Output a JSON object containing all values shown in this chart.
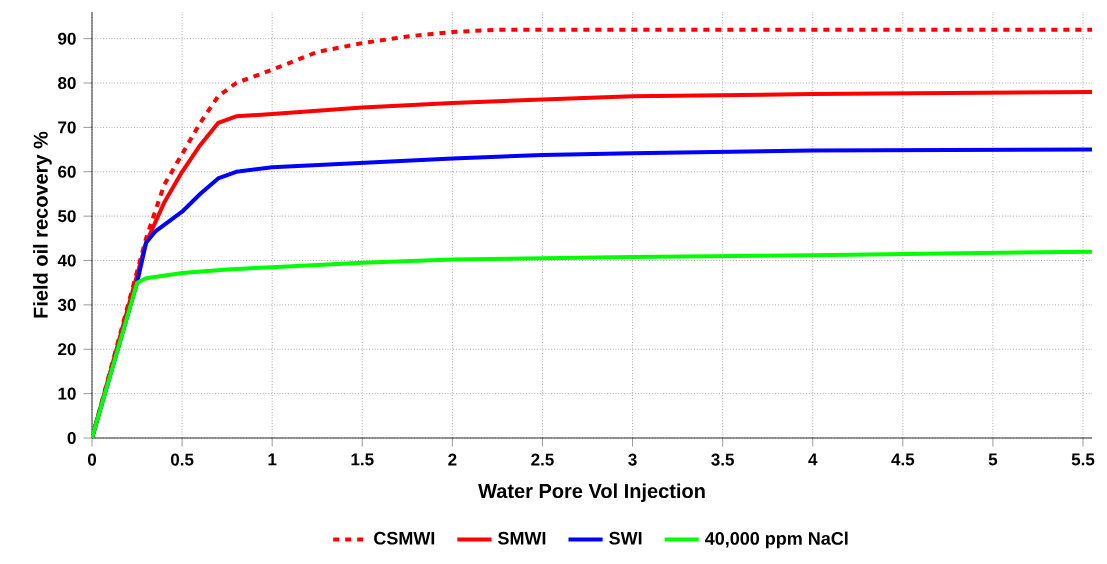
{
  "chart_data": {
    "type": "line",
    "xlabel": "Water Pore Vol Injection",
    "ylabel": "Field oil recovery %",
    "xlim": [
      0,
      5.55
    ],
    "ylim": [
      0,
      96
    ],
    "xticks": [
      0,
      0.5,
      1,
      1.5,
      2,
      2.5,
      3,
      3.5,
      4,
      4.5,
      5,
      5.5
    ],
    "yticks": [
      0,
      10,
      20,
      30,
      40,
      50,
      60,
      70,
      80,
      90
    ],
    "grid": true,
    "legend": "bottom",
    "series": [
      {
        "name": "CSMWI",
        "color": "#ff0000",
        "line_style": "dashed",
        "x": [
          0,
          0.25,
          0.3,
          0.4,
          0.5,
          0.6,
          0.7,
          0.8,
          1,
          1.25,
          1.5,
          1.75,
          2,
          2.25,
          5.55
        ],
        "values": [
          0,
          null,
          45,
          57,
          64,
          71,
          77,
          80,
          83,
          87,
          89,
          90.5,
          91.5,
          92,
          92
        ]
      },
      {
        "name": "SMWI",
        "color": "#ff0000",
        "line_style": "solid",
        "x": [
          0,
          0.25,
          0.3,
          0.4,
          0.5,
          0.6,
          0.7,
          0.8,
          1,
          1.5,
          2,
          2.5,
          3,
          4,
          5.55
        ],
        "values": [
          0,
          null,
          44,
          53,
          60,
          66,
          71,
          72.5,
          73,
          74.5,
          75.5,
          76.3,
          77,
          77.5,
          78
        ]
      },
      {
        "name": "SWI",
        "color": "#0000ff",
        "line_style": "solid",
        "x": [
          0,
          0.25,
          0.3,
          0.35,
          0.5,
          0.6,
          0.7,
          0.8,
          1,
          1.5,
          2,
          2.5,
          3,
          4,
          5.55
        ],
        "values": [
          0,
          35,
          44,
          46.5,
          51,
          55,
          58.5,
          60,
          61,
          62,
          63,
          63.8,
          64.2,
          64.8,
          65
        ]
      },
      {
        "name": "40,000 ppm NaCl",
        "color": "#00ff00",
        "line_style": "solid",
        "x": [
          0,
          0.25,
          0.3,
          0.5,
          0.75,
          1,
          1.5,
          2,
          3,
          4,
          5.55
        ],
        "values": [
          0,
          35,
          36,
          37.2,
          38,
          38.5,
          39.5,
          40.2,
          40.8,
          41.2,
          42
        ]
      }
    ]
  }
}
